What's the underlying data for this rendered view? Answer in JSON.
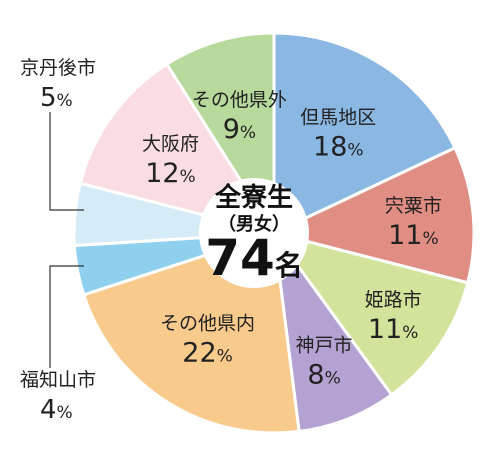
{
  "chart_data": {
    "type": "pie",
    "title": "全寮生",
    "subtitle": "（男女）",
    "total": "74",
    "total_unit": "名",
    "unit": "%",
    "slices": [
      {
        "name": "但馬地区",
        "value": 18,
        "color": "#8bb7e3"
      },
      {
        "name": "宍粟市",
        "value": 11,
        "color": "#e08d83"
      },
      {
        "name": "姫路市",
        "value": 11,
        "color": "#d2e39b"
      },
      {
        "name": "神戸市",
        "value": 8,
        "color": "#b4a2d3"
      },
      {
        "name": "その他県内",
        "value": 22,
        "color": "#f8ca8c"
      },
      {
        "name": "福知山市",
        "value": 4,
        "color": "#8fd0ef"
      },
      {
        "name": "京丹後市",
        "value": 5,
        "color": "#d6ebf8"
      },
      {
        "name": "大阪府",
        "value": 12,
        "color": "#f9dde3"
      },
      {
        "name": "その他県外",
        "value": 9,
        "color": "#b7d99c"
      }
    ]
  }
}
